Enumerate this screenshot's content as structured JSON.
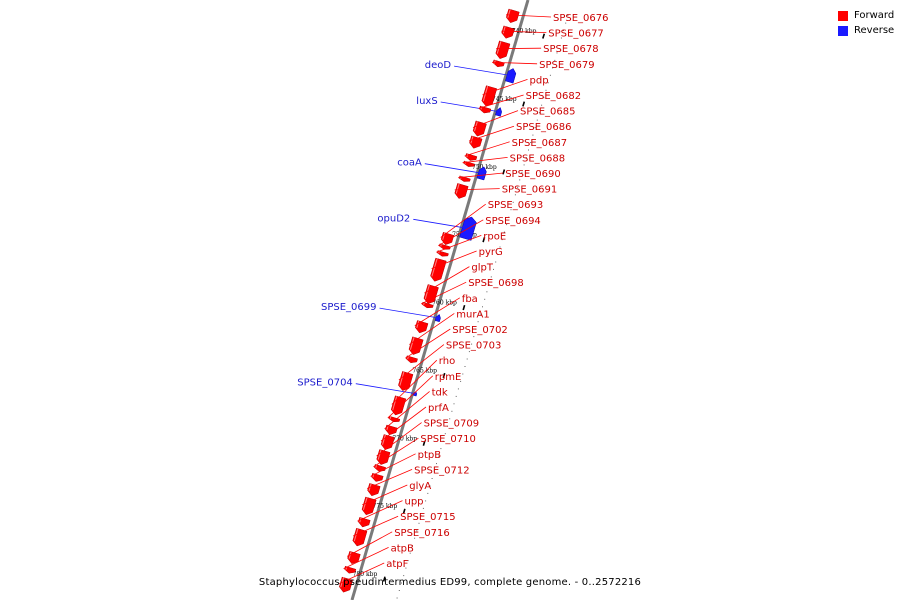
{
  "colors": {
    "forward": "#ff0000",
    "reverse": "#1a1aff",
    "backbone": "#7a7a7a",
    "label_forward": "#cc0000",
    "label_reverse": "#1a1acc"
  },
  "legend": [
    {
      "label": "Forward",
      "color": "#ff0000"
    },
    {
      "label": "Reverse",
      "color": "#1a1aff"
    }
  ],
  "caption": "Staphylococcus pseudintermedius ED99, complete genome. - 0..2572216",
  "kbp_ticks": [
    {
      "label": "740 kbp",
      "pos": 740
    },
    {
      "label": "745 kbp",
      "pos": 745
    },
    {
      "label": "750 kbp",
      "pos": 750
    },
    {
      "label": "755 kbp",
      "pos": 755
    },
    {
      "label": "760 kbp",
      "pos": 760
    },
    {
      "label": "765 kbp",
      "pos": 765
    },
    {
      "label": "770 kbp",
      "pos": 770
    },
    {
      "label": "775 kbp",
      "pos": 775
    },
    {
      "label": "780 kbp",
      "pos": 780
    }
  ],
  "reverse_genes": [
    {
      "name": "deoD",
      "pos": 743.3,
      "size": 1.0
    },
    {
      "name": "luxS",
      "pos": 746.0,
      "size": 0.6
    },
    {
      "name": "coaA",
      "pos": 750.5,
      "size": 0.9
    },
    {
      "name": "opuD2",
      "pos": 754.5,
      "size": 1.6
    },
    {
      "name": "SPSE_0699",
      "pos": 761.2,
      "size": 0.5
    },
    {
      "name": "SPSE_0704",
      "pos": 766.8,
      "size": 0.3
    }
  ],
  "forward_genes": [
    {
      "name": "SPSE_0676",
      "pos": 739.3,
      "size": 0.9
    },
    {
      "name": "SPSE_0677",
      "pos": 740.5,
      "size": 0.8
    },
    {
      "name": "SPSE_0678",
      "pos": 741.8,
      "size": 1.2
    },
    {
      "name": "SPSE_0679",
      "pos": 742.8,
      "size": 0.4
    },
    {
      "name": "pdp",
      "pos": 745.2,
      "size": 1.4
    },
    {
      "name": "SPSE_0682",
      "pos": 746.2,
      "size": 0.4
    },
    {
      "name": "SPSE_0685",
      "pos": 747.6,
      "size": 1.0
    },
    {
      "name": "SPSE_0686",
      "pos": 748.6,
      "size": 0.8
    },
    {
      "name": "SPSE_0687",
      "pos": 749.7,
      "size": 0.4
    },
    {
      "name": "SPSE_0688",
      "pos": 750.2,
      "size": 0.3
    },
    {
      "name": "SPSE_0690",
      "pos": 751.3,
      "size": 0.3
    },
    {
      "name": "SPSE_0691",
      "pos": 752.2,
      "size": 1.0
    },
    {
      "name": "SPSE_0693",
      "pos": 755.7,
      "size": 0.8
    },
    {
      "name": "SPSE_0694",
      "pos": 756.3,
      "size": 0.3
    },
    {
      "name": "rpoE",
      "pos": 756.8,
      "size": 0.3
    },
    {
      "name": "pyrG",
      "pos": 758.0,
      "size": 1.6
    },
    {
      "name": "glpT",
      "pos": 759.8,
      "size": 1.3
    },
    {
      "name": "SPSE_0698",
      "pos": 760.6,
      "size": 0.3
    },
    {
      "name": "fba",
      "pos": 762.2,
      "size": 0.8
    },
    {
      "name": "murA1",
      "pos": 763.6,
      "size": 1.2
    },
    {
      "name": "SPSE_0702",
      "pos": 764.6,
      "size": 0.4
    },
    {
      "name": "SPSE_0703",
      "pos": 766.2,
      "size": 1.3
    },
    {
      "name": "rho",
      "pos": 768.0,
      "size": 1.3
    },
    {
      "name": "rpmE",
      "pos": 769.0,
      "size": 0.3
    },
    {
      "name": "tdk",
      "pos": 769.8,
      "size": 0.6
    },
    {
      "name": "prfA",
      "pos": 770.7,
      "size": 1.0
    },
    {
      "name": "SPSE_0709",
      "pos": 771.8,
      "size": 1.0
    },
    {
      "name": "SPSE_0710",
      "pos": 772.6,
      "size": 0.4
    },
    {
      "name": "ptpB",
      "pos": 773.3,
      "size": 0.5
    },
    {
      "name": "SPSE_0712",
      "pos": 774.2,
      "size": 0.8
    },
    {
      "name": "glyA",
      "pos": 775.4,
      "size": 1.2
    },
    {
      "name": "upp",
      "pos": 776.6,
      "size": 0.6
    },
    {
      "name": "SPSE_0715",
      "pos": 777.7,
      "size": 1.2
    },
    {
      "name": "SPSE_0716",
      "pos": 779.2,
      "size": 0.8
    },
    {
      "name": "atpB",
      "pos": 780.1,
      "size": 0.4
    },
    {
      "name": "atpF",
      "pos": 781.2,
      "size": 1.0
    }
  ]
}
